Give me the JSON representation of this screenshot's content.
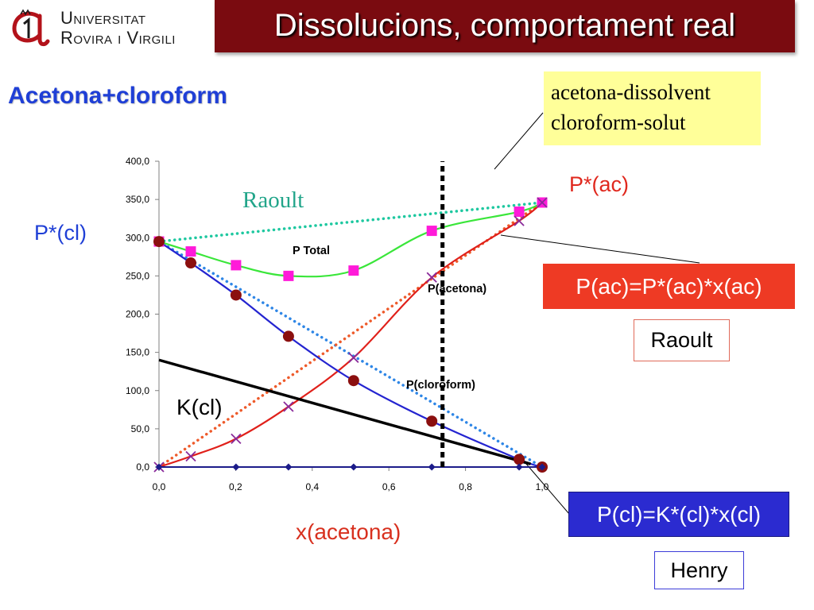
{
  "logo": {
    "icon": "university-emblem-icon",
    "line1": "Universitat",
    "line2": "Rovira i Virgili"
  },
  "title": "Dissolucions, comportament real",
  "subtitle": "Acetona+cloroform",
  "note_box": {
    "line1": "acetona-dissolvent",
    "line2": "cloroform-solut"
  },
  "callouts": {
    "raoult_equation": "P(ac)=P*(ac)*x(ac)",
    "raoult_tag": "Raoult",
    "henry_equation": "P(cl)=K*(cl)*x(cl)",
    "henry_tag": "Henry"
  },
  "colors": {
    "title_bar": "#7a0b10",
    "title_text": "#ffffff",
    "subtitle": "#1f3fd6",
    "note_box_fill": "#ffff99",
    "raoult_equation_fill": "#ee3a24",
    "raoult_tag_border": "#e06a5a",
    "henry_equation_fill": "#2b2bd0",
    "henry_tag_border": "#3c3cd8",
    "raoult_label": "#22a58a",
    "p_star_cl_label": "#1f3fd6",
    "p_star_ac_label": "#e0281e",
    "x_label": "#d8301e"
  },
  "chart_data": {
    "type": "line",
    "xlabel": "x(acetona)",
    "xlim": [
      0,
      1
    ],
    "ylim": [
      0,
      400
    ],
    "x_ticks": [
      0,
      0.2,
      0.4,
      0.6,
      0.8,
      1.0
    ],
    "x_tick_labels": [
      "0,0",
      "0,2",
      "0,4",
      "0,6",
      "0,8",
      "1,0"
    ],
    "y_ticks": [
      0,
      50,
      100,
      150,
      200,
      250,
      300,
      350,
      400
    ],
    "y_tick_labels": [
      "0,0",
      "50,0",
      "100,0",
      "150,0",
      "200,0",
      "250,0",
      "300,0",
      "350,0",
      "400,0"
    ],
    "grid": false,
    "legend": "none",
    "series": [
      {
        "name": "P Total",
        "x": [
          0,
          0.083,
          0.201,
          0.338,
          0.508,
          0.712,
          0.94,
          1.0
        ],
        "y": [
          295,
          282,
          264,
          250,
          257,
          309,
          334,
          346
        ],
        "color": "#3ae63a",
        "marker": "square",
        "marker_color": "#ff1ad9",
        "smooth": true
      },
      {
        "name": "P(acetona)",
        "x": [
          0,
          0.083,
          0.201,
          0.338,
          0.508,
          0.712,
          0.94,
          1.0
        ],
        "y": [
          0,
          14,
          37,
          79,
          143,
          248,
          322,
          346
        ],
        "color": "#e0201a",
        "marker": "x",
        "marker_color": "#8a2a9a",
        "smooth": true
      },
      {
        "name": "P(cloroform)",
        "x": [
          0,
          0.083,
          0.201,
          0.338,
          0.508,
          0.712,
          0.94,
          1.0
        ],
        "y": [
          295,
          267,
          225,
          171,
          113,
          60,
          10,
          0
        ],
        "color": "#2424d0",
        "marker": "circle",
        "marker_color": "#8b0f0f",
        "smooth": true
      },
      {
        "x": [
          0,
          0.201,
          0.338,
          0.508,
          0.712,
          0.94,
          1.0
        ],
        "y": [
          0,
          0,
          0,
          0,
          0,
          0,
          0
        ],
        "color": "#1c1c8a",
        "marker": "diamond",
        "marker_color": "#1c1c8a",
        "smooth": false
      }
    ],
    "reference_lines": [
      {
        "x": [
          0,
          1
        ],
        "y": [
          295,
          346
        ],
        "style": "dotted",
        "color": "#1ec8a0"
      },
      {
        "x": [
          0,
          1
        ],
        "y": [
          295,
          0
        ],
        "style": "dotted",
        "color": "#2e86e6"
      },
      {
        "x": [
          0,
          1
        ],
        "y": [
          0,
          346
        ],
        "style": "dotted",
        "color": "#ee5a2a"
      },
      {
        "x": [
          0.74,
          0.74
        ],
        "y": [
          0,
          400
        ],
        "style": "dashed",
        "color": "#000000"
      },
      {
        "x": [
          0,
          0.97
        ],
        "y": [
          140,
          4
        ],
        "style": "solid",
        "color": "#000000"
      }
    ],
    "annotations": {
      "raoult": "Raoult",
      "p_star_cl": "P*(cl)",
      "p_star_ac": "P*(ac)",
      "k_cl": "K(cl)"
    }
  }
}
